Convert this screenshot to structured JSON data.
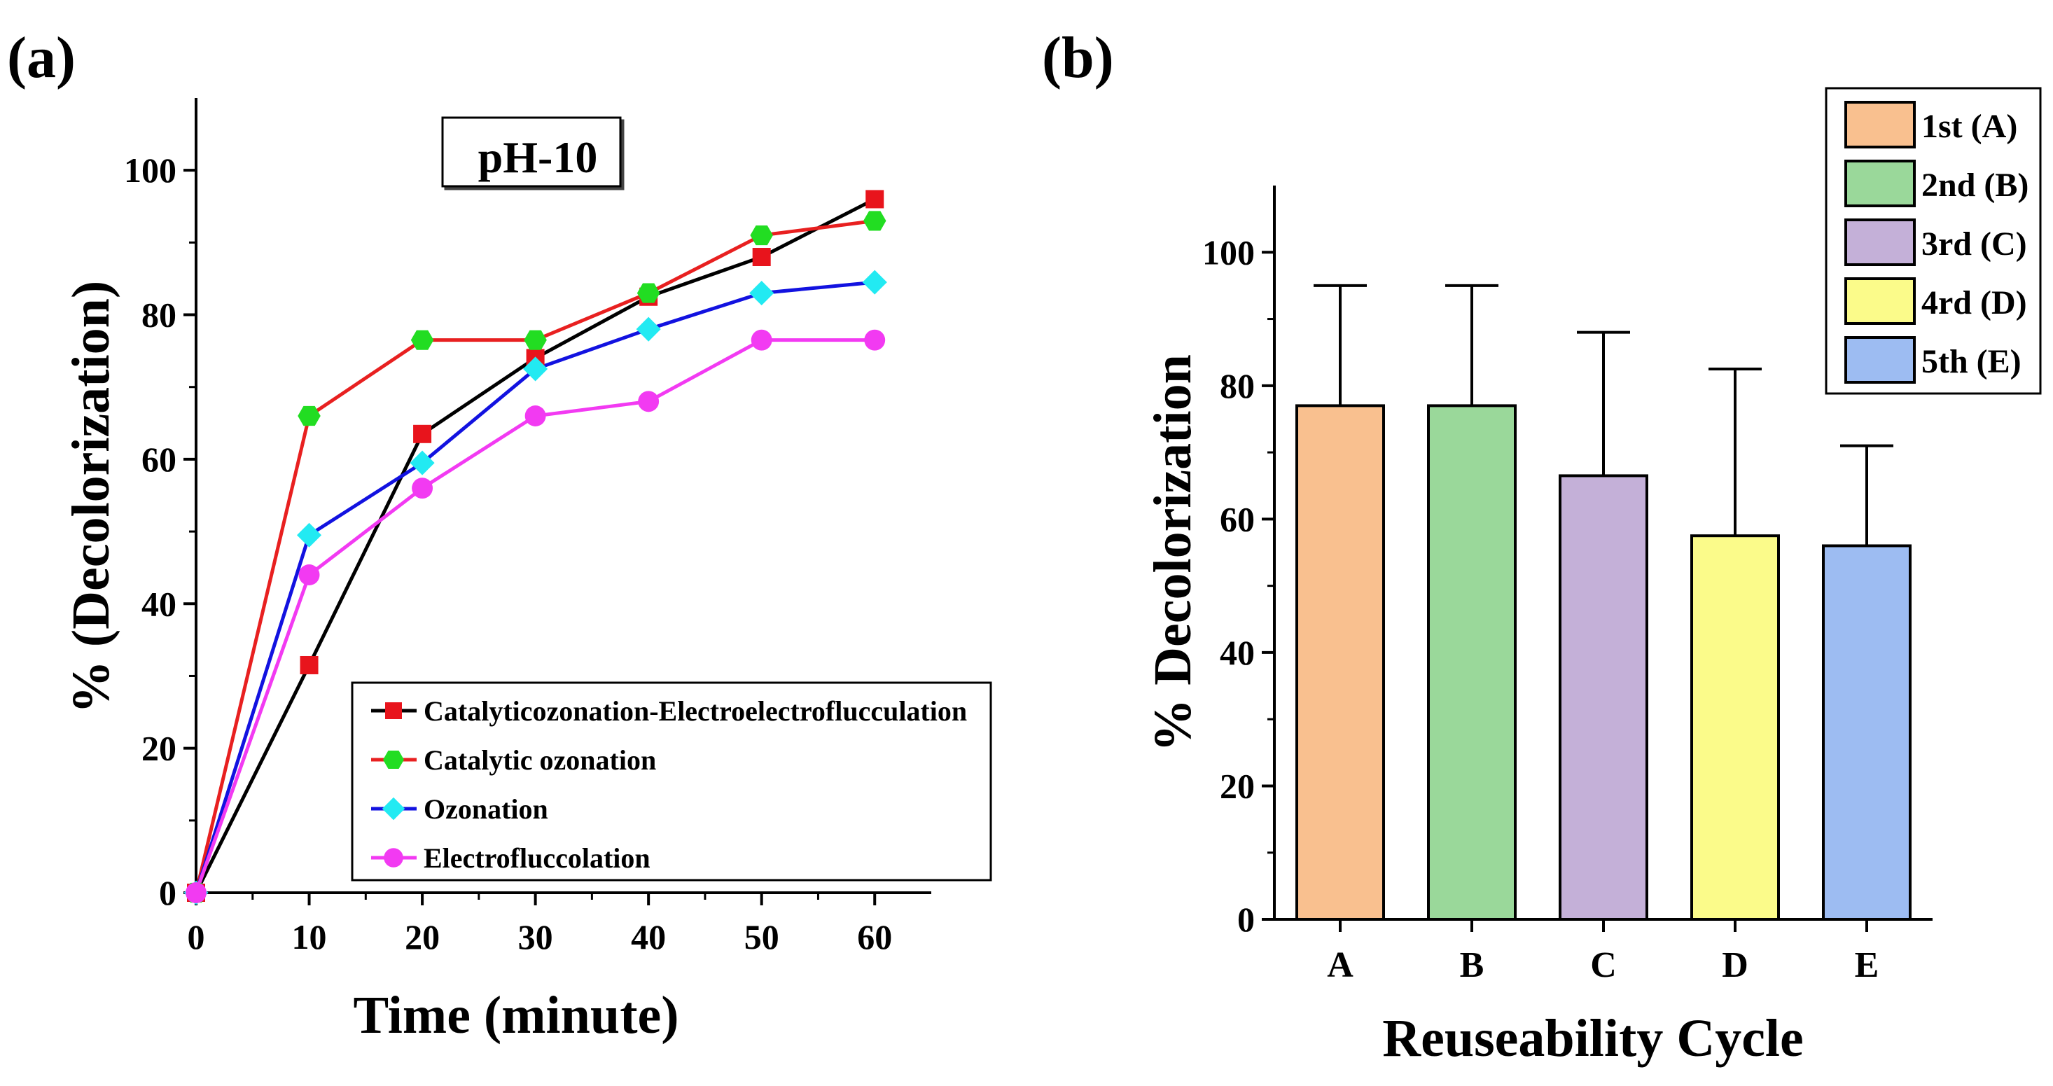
{
  "chart_data": [
    {
      "panel_label": "(a)",
      "type": "line",
      "annotation": "pH-10",
      "xlabel": "Time (minute)",
      "ylabel": "% (Decolorization)",
      "xlim": [
        0,
        65
      ],
      "ylim": [
        0,
        110
      ],
      "xticks": [
        0,
        10,
        20,
        30,
        40,
        50,
        60
      ],
      "yticks": [
        0,
        20,
        40,
        60,
        80,
        100
      ],
      "x": [
        0,
        10,
        20,
        30,
        40,
        50,
        60
      ],
      "legend_position": "lower-right",
      "series": [
        {
          "name": "Catalyticozonation-Electroelectroflucculation",
          "color": "#e8141c",
          "line_color": "#000000",
          "marker": "square",
          "values": [
            0,
            31.5,
            63.5,
            74,
            82.5,
            88,
            96
          ]
        },
        {
          "name": "Catalytic ozonation",
          "color": "#22dd22",
          "line_color": "#e82020",
          "marker": "hexagon",
          "values": [
            0,
            66,
            76.5,
            76.5,
            83,
            91,
            93
          ]
        },
        {
          "name": "Ozonation",
          "color": "#22eaf2",
          "line_color": "#1212e0",
          "marker": "diamond",
          "values": [
            0,
            49.5,
            59.5,
            72.5,
            78,
            83,
            84.5
          ]
        },
        {
          "name": "Electrofluccolation",
          "color": "#f23af2",
          "line_color": "#f23af2",
          "marker": "circle",
          "values": [
            0,
            44,
            56,
            66,
            68,
            76.5,
            76.5
          ]
        }
      ]
    },
    {
      "panel_label": "(b)",
      "type": "bar",
      "xlabel": "Reuseability Cycle",
      "ylabel": "% Decolorization",
      "ylim": [
        0,
        110
      ],
      "yticks": [
        0,
        20,
        40,
        60,
        80,
        100
      ],
      "categories": [
        "A",
        "B",
        "C",
        "D",
        "E"
      ],
      "values": [
        77,
        77,
        66.5,
        57.5,
        56
      ],
      "error_upper": [
        95,
        95,
        88,
        82.5,
        71
      ],
      "colors": [
        "#f9c08f",
        "#9ad89a",
        "#c4b0d8",
        "#fbfb8a",
        "#9dbcf2"
      ],
      "legend_position": "top-right",
      "legend": [
        "1st (A)",
        "2nd (B)",
        "3rd (C)",
        "4rd (D)",
        "5th (E)"
      ]
    }
  ]
}
